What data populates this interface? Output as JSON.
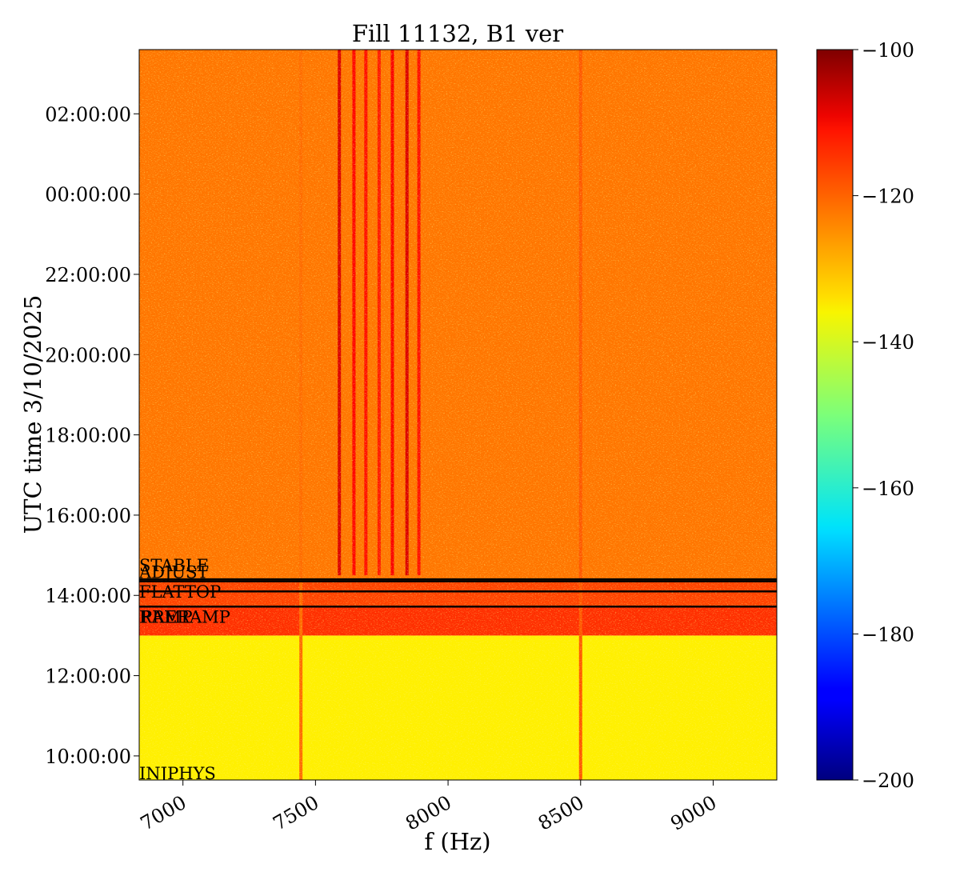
{
  "chart_data": {
    "type": "heatmap",
    "title": "Fill 11132, B1 ver",
    "xlabel": "f (Hz)",
    "ylabel": "UTC time 3/10/2025",
    "xlim": [
      6835,
      9240
    ],
    "ylim_hours": [
      9.4,
      27.6
    ],
    "x_ticks": [
      7000,
      7500,
      8000,
      8500,
      9000
    ],
    "x_tick_labels": [
      "7000",
      "7500",
      "8000",
      "8500",
      "9000"
    ],
    "y_ticks": [
      {
        "hours": 10,
        "label": "10:00:00"
      },
      {
        "hours": 12,
        "label": "12:00:00"
      },
      {
        "hours": 14,
        "label": "14:00:00"
      },
      {
        "hours": 16,
        "label": "16:00:00"
      },
      {
        "hours": 18,
        "label": "18:00:00"
      },
      {
        "hours": 20,
        "label": "20:00:00"
      },
      {
        "hours": 22,
        "label": "22:00:00"
      },
      {
        "hours": 24,
        "label": "00:00:00"
      },
      {
        "hours": 26,
        "label": "02:00:00"
      }
    ],
    "colorbar": {
      "colormap": "jet",
      "range": [
        -200,
        -100
      ],
      "ticks": [
        -100,
        -120,
        -140,
        -160,
        -180,
        -200
      ],
      "tick_labels": [
        "−100",
        "−120",
        "−140",
        "−160",
        "−180",
        "−200"
      ]
    },
    "regions": [
      {
        "from_hours": 9.4,
        "to_hours": 13.0,
        "level": -136
      },
      {
        "from_hours": 13.0,
        "to_hours": 13.7,
        "level": -117
      },
      {
        "from_hours": 13.7,
        "to_hours": 14.4,
        "level": -119
      },
      {
        "from_hours": 14.4,
        "to_hours": 27.6,
        "level": -124
      }
    ],
    "lines_hz": [
      {
        "f": 7445,
        "from_hours": 9.4,
        "to_hours": 27.6,
        "level": -123
      },
      {
        "f": 7590,
        "from_hours": 14.5,
        "to_hours": 27.6,
        "level": -109
      },
      {
        "f": 7645,
        "from_hours": 14.5,
        "to_hours": 27.6,
        "level": -113
      },
      {
        "f": 7690,
        "from_hours": 14.5,
        "to_hours": 27.6,
        "level": -114
      },
      {
        "f": 7740,
        "from_hours": 14.5,
        "to_hours": 27.6,
        "level": -115
      },
      {
        "f": 7790,
        "from_hours": 14.5,
        "to_hours": 27.6,
        "level": -112
      },
      {
        "f": 7845,
        "from_hours": 14.5,
        "to_hours": 27.6,
        "level": -109
      },
      {
        "f": 7890,
        "from_hours": 14.5,
        "to_hours": 27.6,
        "level": -114
      },
      {
        "f": 8500,
        "from_hours": 9.4,
        "to_hours": 27.6,
        "level": -121
      }
    ],
    "markers": [
      {
        "hours": 14.4,
        "label": "STABLE"
      },
      {
        "hours": 14.35,
        "label": "ADJUST"
      },
      {
        "hours": 14.1,
        "label": "FLATTOP"
      },
      {
        "hours": 13.72,
        "label": "RAMP"
      },
      {
        "hours": 13.72,
        "label": "PRERAMP"
      },
      {
        "hours": 9.4,
        "label": "INJPHYS"
      }
    ]
  }
}
